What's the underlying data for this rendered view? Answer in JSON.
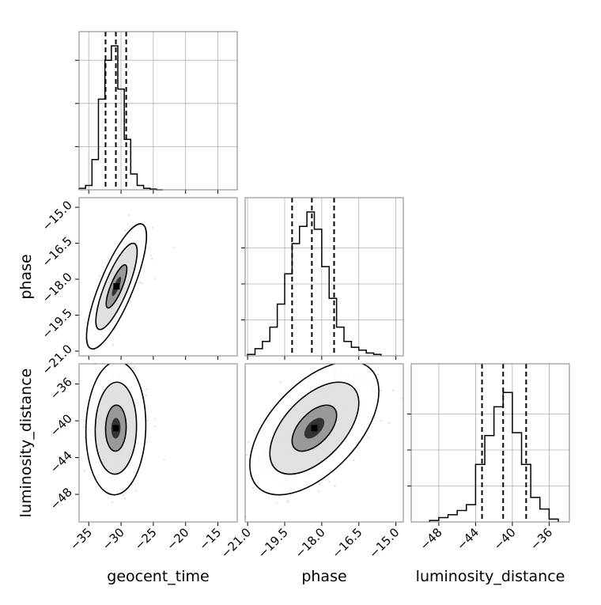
{
  "chart_data": {
    "type": "corner",
    "title": "",
    "parameters": [
      "geocent_time",
      "phase",
      "luminosity_distance"
    ],
    "colors": {
      "line": "#000000",
      "grid": "#b0b0b0",
      "scatter": "#9a9a9a",
      "frame": "#808080"
    },
    "diagonal": [
      {
        "parameter": "geocent_time",
        "range": [
          -36.5,
          -12.0
        ],
        "ylim": [
          0,
          1.0
        ],
        "bins": [
          -36.5,
          -35.5,
          -34.5,
          -33.5,
          -32.5,
          -31.5,
          -30.5,
          -29.5,
          -28.5,
          -27.5,
          -26.5,
          -25.5,
          -24.5,
          -23.5
        ],
        "counts": [
          0.01,
          0.03,
          0.21,
          0.63,
          0.9,
          1.0,
          0.7,
          0.35,
          0.11,
          0.03,
          0.01,
          0.005,
          0.0
        ],
        "quantiles": [
          -32.4,
          -30.8,
          -29.2
        ],
        "xticks": [
          -35,
          -30,
          -25,
          -20,
          -15
        ],
        "xtick_labels": [
          "−35",
          "−30",
          "−25",
          "−20",
          "−15"
        ],
        "yticks": [
          0.3,
          0.6,
          0.9
        ],
        "grid": true
      },
      {
        "parameter": "phase",
        "range": [
          -21.1,
          -14.7
        ],
        "ylim": [
          0,
          1.0
        ],
        "bins": [
          -21.0,
          -20.7,
          -20.4,
          -20.1,
          -19.8,
          -19.5,
          -19.2,
          -18.9,
          -18.6,
          -18.3,
          -18.0,
          -17.7,
          -17.4,
          -17.1,
          -16.8,
          -16.5,
          -16.2,
          -15.9,
          -15.6
        ],
        "counts": [
          0.01,
          0.05,
          0.1,
          0.2,
          0.36,
          0.57,
          0.78,
          0.9,
          1.0,
          0.88,
          0.62,
          0.4,
          0.2,
          0.1,
          0.06,
          0.04,
          0.02,
          0.01
        ],
        "quantiles": [
          -19.2,
          -18.4,
          -17.5
        ],
        "xticks": [
          -21.0,
          -19.5,
          -18.0,
          -16.5,
          -15.0
        ],
        "xtick_labels": [
          "−21.0",
          "−19.5",
          "−18.0",
          "−16.5",
          "−15.0"
        ],
        "yticks": [
          0.25,
          0.5,
          0.75
        ],
        "grid": true
      },
      {
        "parameter": "luminosity_distance",
        "range": [
          -51.0,
          -33.8
        ],
        "ylim": [
          0,
          1.0
        ],
        "bins": [
          -49.0,
          -48.0,
          -47.0,
          -46.0,
          -45.0,
          -44.0,
          -43.0,
          -42.0,
          -41.0,
          -40.0,
          -39.0,
          -38.0,
          -37.0,
          -36.0,
          -35.0
        ],
        "counts": [
          0.01,
          0.03,
          0.05,
          0.08,
          0.12,
          0.4,
          0.6,
          0.8,
          0.9,
          0.62,
          0.4,
          0.17,
          0.09,
          0.02
        ],
        "quantiles": [
          -43.3,
          -41.0,
          -38.5
        ],
        "xticks": [
          -48,
          -44,
          -40,
          -36
        ],
        "xtick_labels": [
          "−48",
          "−44",
          "−40",
          "−36"
        ],
        "yticks": [
          0.25,
          0.5,
          0.75
        ],
        "grid": true
      }
    ],
    "pairs": [
      {
        "x": "geocent_time",
        "y": "phase",
        "xlim": [
          -36.5,
          -12.0
        ],
        "ylim": [
          -21.2,
          -14.6
        ],
        "yticks": [
          -21.0,
          -19.5,
          -18.0,
          -16.5,
          -15.0
        ],
        "ytick_labels": [
          "−21.0",
          "−19.5",
          "−18.0",
          "−16.5",
          "−15.0"
        ],
        "center": [
          -30.7,
          -18.3
        ],
        "sigma": [
          1.6,
          0.9
        ],
        "correlation": 0.8
      },
      {
        "x": "geocent_time",
        "y": "luminosity_distance",
        "xlim": [
          -36.5,
          -12.0
        ],
        "ylim": [
          -51.0,
          -33.8
        ],
        "yticks": [
          -48,
          -44,
          -40,
          -36
        ],
        "ytick_labels": [
          "−48",
          "−44",
          "−40",
          "−36"
        ],
        "center": [
          -30.8,
          -40.8
        ],
        "sigma": [
          1.6,
          2.5
        ],
        "correlation": 0.05
      },
      {
        "x": "phase",
        "y": "luminosity_distance",
        "xlim": [
          -21.1,
          -14.7
        ],
        "ylim": [
          -51.0,
          -33.8
        ],
        "center": [
          -18.3,
          -40.8
        ],
        "sigma": [
          0.9,
          2.5
        ],
        "correlation": 0.55
      }
    ],
    "axis_labels": {
      "x": [
        "geocent_time",
        "phase",
        "luminosity_distance"
      ],
      "y": [
        "phase",
        "luminosity_distance"
      ]
    },
    "density_levels": [
      0.39,
      0.86,
      0.99
    ],
    "legend": "none"
  }
}
